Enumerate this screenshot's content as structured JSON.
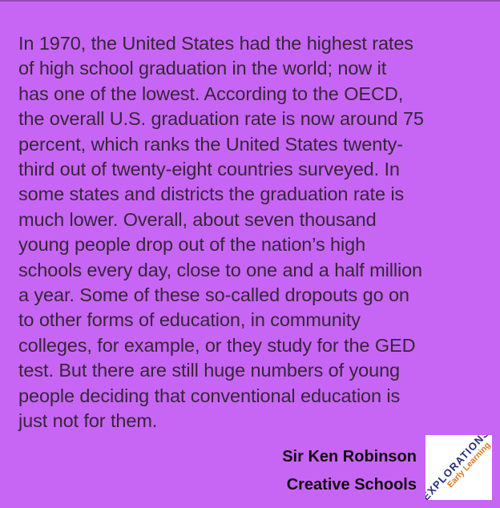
{
  "page": {
    "background_color": "#c766f4"
  },
  "quote": {
    "text_color": "#362539",
    "lines": [
      "In 1970, the United States had the highest rates",
      "of high school graduation in the world; now it",
      "has one of the lowest. According to the OECD,",
      "the overall U.S. graduation rate is now around 75",
      "percent, which ranks the United States twenty-",
      "third out of twenty-eight countries surveyed. In",
      "some states and districts the graduation rate is",
      "much lower. Overall, about seven thousand",
      "young people drop out of the nation’s high",
      "schools every day, close to one and a half million",
      "a year. Some of these so-called dropouts go on",
      "to other forms of education, in community",
      "colleges, for example, or they study for the GED",
      "test. But there are still huge numbers of young",
      "people deciding that conventional education is",
      "just not for them."
    ]
  },
  "attribution": {
    "author": "Sir Ken Robinson",
    "source": "Creative Schools",
    "text_color": "#150a15"
  },
  "logo": {
    "primary_text": "EXPLORATIONS",
    "secondary_text": "Early Learning",
    "primary_color": "#252c7e",
    "secondary_color": "#e2761b",
    "background_color": "#ffffff"
  }
}
